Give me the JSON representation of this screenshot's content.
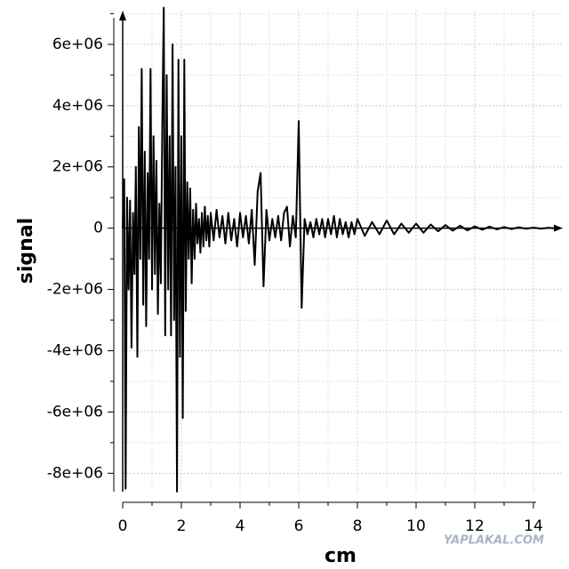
{
  "chart_data": {
    "type": "line",
    "xlabel": "cm",
    "ylabel": "signal",
    "watermark": "YAPLAKAL.COM",
    "color": "#000000",
    "grid": true,
    "xlim": [
      0,
      15
    ],
    "ylim": [
      -8600000,
      7100000
    ],
    "xticks": [
      0,
      2,
      4,
      6,
      8,
      10,
      12,
      14
    ],
    "xminorticks": [
      1,
      3,
      5,
      7,
      9,
      11,
      13
    ],
    "yticks": [
      {
        "value": -8000000,
        "label": "-8e+06"
      },
      {
        "value": -6000000,
        "label": "-6e+06"
      },
      {
        "value": -4000000,
        "label": "-4e+06"
      },
      {
        "value": -2000000,
        "label": "-2e+06"
      },
      0,
      {
        "value": 2000000,
        "label": "2e+06"
      },
      {
        "value": 4000000,
        "label": "4e+06"
      },
      {
        "value": 6000000,
        "label": "6e+06"
      }
    ],
    "yminorticks": [
      -7000000,
      -5000000,
      -3000000,
      -1000000,
      1000000,
      3000000,
      5000000,
      7000000
    ],
    "x": [
      0,
      0.05,
      0.1,
      0.15,
      0.2,
      0.25,
      0.3,
      0.35,
      0.4,
      0.45,
      0.5,
      0.55,
      0.6,
      0.65,
      0.7,
      0.75,
      0.8,
      0.85,
      0.9,
      0.95,
      1,
      1.05,
      1.1,
      1.15,
      1.2,
      1.25,
      1.3,
      1.35,
      1.4,
      1.45,
      1.5,
      1.55,
      1.6,
      1.65,
      1.7,
      1.75,
      1.8,
      1.85,
      1.9,
      1.95,
      2,
      2.05,
      2.1,
      2.15,
      2.2,
      2.25,
      2.3,
      2.35,
      2.4,
      2.45,
      2.5,
      2.55,
      2.6,
      2.65,
      2.7,
      2.75,
      2.8,
      2.85,
      2.9,
      2.95,
      3,
      3.1,
      3.2,
      3.3,
      3.4,
      3.5,
      3.6,
      3.7,
      3.8,
      3.9,
      4,
      4.1,
      4.2,
      4.3,
      4.4,
      4.5,
      4.6,
      4.7,
      4.8,
      4.9,
      5,
      5.1,
      5.2,
      5.3,
      5.4,
      5.5,
      5.6,
      5.7,
      5.8,
      5.9,
      6,
      6.1,
      6.2,
      6.3,
      6.4,
      6.5,
      6.6,
      6.7,
      6.8,
      6.9,
      7,
      7.1,
      7.2,
      7.3,
      7.4,
      7.5,
      7.6,
      7.7,
      7.8,
      7.9,
      8,
      8.25,
      8.5,
      8.75,
      9,
      9.25,
      9.5,
      9.75,
      10,
      10.25,
      10.5,
      10.75,
      11,
      11.25,
      11.5,
      11.75,
      12,
      12.25,
      12.5,
      12.75,
      13,
      13.25,
      13.5,
      13.75,
      14,
      14.25,
      14.5,
      14.75
    ],
    "values": [
      0,
      1600000,
      -8500000,
      1000000,
      -2000000,
      900000,
      -3900000,
      500000,
      -1500000,
      2000000,
      -4200000,
      3300000,
      -1000000,
      5200000,
      -2500000,
      2500000,
      -3200000,
      1800000,
      -1000000,
      5200000,
      -2000000,
      3000000,
      -1500000,
      2200000,
      -2800000,
      800000,
      -1800000,
      3500000,
      7200000,
      -3500000,
      5000000,
      -2000000,
      3000000,
      -3500000,
      6000000,
      -3000000,
      2000000,
      -8600000,
      5500000,
      -4200000,
      3000000,
      -6200000,
      5500000,
      -2700000,
      1500000,
      -1000000,
      1300000,
      -1800000,
      600000,
      -1000000,
      800000,
      -500000,
      300000,
      -800000,
      500000,
      -600000,
      700000,
      -400000,
      400000,
      -600000,
      500000,
      -400000,
      600000,
      -300000,
      400000,
      -500000,
      500000,
      -400000,
      300000,
      -600000,
      500000,
      -300000,
      400000,
      -500000,
      600000,
      -1200000,
      1200000,
      1800000,
      -1900000,
      600000,
      -400000,
      300000,
      -300000,
      400000,
      -400000,
      500000,
      700000,
      -600000,
      400000,
      -300000,
      3500000,
      -2600000,
      300000,
      -200000,
      200000,
      -300000,
      300000,
      -200000,
      300000,
      -300000,
      300000,
      -200000,
      400000,
      -300000,
      300000,
      -200000,
      200000,
      -300000,
      200000,
      -200000,
      300000,
      -250000,
      200000,
      -200000,
      250000,
      -200000,
      150000,
      -150000,
      150000,
      -150000,
      120000,
      -100000,
      100000,
      -80000,
      80000,
      -70000,
      60000,
      -50000,
      50000,
      -40000,
      40000,
      -30000,
      30000,
      -20000,
      20000,
      -20000,
      10000,
      0
    ]
  }
}
